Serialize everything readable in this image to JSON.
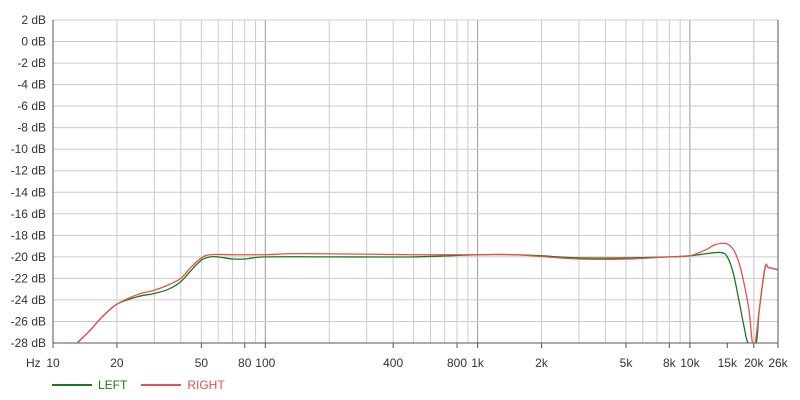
{
  "chart_data": {
    "type": "line",
    "title": "",
    "xlabel": "Hz",
    "ylabel": "",
    "x_scale": "log",
    "xlim": [
      10,
      26000
    ],
    "ylim": [
      -28,
      2
    ],
    "grid": true,
    "legend_position": "bottom-left",
    "y_ticks": [
      "2 dB",
      "0 dB",
      "-2 dB",
      "-4 dB",
      "-6 dB",
      "-8 dB",
      "-10 dB",
      "-12 dB",
      "-14 dB",
      "-16 dB",
      "-18 dB",
      "-20 dB",
      "-22 dB",
      "-24 dB",
      "-26 dB",
      "-28 dB"
    ],
    "x_ticks": [
      {
        "value": 10,
        "label": "10"
      },
      {
        "value": 20,
        "label": "20"
      },
      {
        "value": 50,
        "label": "50"
      },
      {
        "value": 80,
        "label": "80"
      },
      {
        "value": 100,
        "label": "100"
      },
      {
        "value": 400,
        "label": "400"
      },
      {
        "value": 800,
        "label": "800"
      },
      {
        "value": 1000,
        "label": "1k"
      },
      {
        "value": 2000,
        "label": "2k"
      },
      {
        "value": 5000,
        "label": "5k"
      },
      {
        "value": 8000,
        "label": "8k"
      },
      {
        "value": 10000,
        "label": "10k"
      },
      {
        "value": 15000,
        "label": "15k"
      },
      {
        "value": 20000,
        "label": "20k"
      },
      {
        "value": 26000,
        "label": "26k"
      }
    ],
    "series": [
      {
        "name": "LEFT",
        "color": "#1a7a1a",
        "x": [
          13,
          15,
          17,
          20,
          25,
          30,
          35,
          40,
          45,
          50,
          55,
          60,
          70,
          80,
          100,
          200,
          500,
          1000,
          1500,
          2000,
          3000,
          5000,
          8000,
          10000,
          12000,
          14000,
          15000,
          16000,
          17000,
          18000,
          18800,
          20500,
          21200,
          22600,
          23500,
          26000
        ],
        "y": [
          -28,
          -26.8,
          -25.6,
          -24.4,
          -23.7,
          -23.4,
          -23.0,
          -22.3,
          -21.2,
          -20.3,
          -20.0,
          -20.0,
          -20.2,
          -20.2,
          -20.0,
          -20.0,
          -20.0,
          -19.8,
          -19.8,
          -19.9,
          -20.1,
          -20.1,
          -20.0,
          -19.9,
          -19.7,
          -19.6,
          -20.0,
          -21.5,
          -24.0,
          -26.5,
          -28,
          -28,
          -25,
          -21.0,
          -21.0,
          -21.2
        ]
      },
      {
        "name": "RIGHT",
        "color": "#e85050",
        "x": [
          13,
          15,
          17,
          20,
          25,
          30,
          35,
          40,
          45,
          50,
          55,
          70,
          100,
          150,
          500,
          1000,
          1500,
          3000,
          5000,
          8000,
          10000,
          12000,
          13000,
          14000,
          15000,
          16000,
          17000,
          18000,
          19000,
          19700,
          20300,
          21200,
          22600,
          23500,
          26000
        ],
        "y": [
          -28,
          -26.8,
          -25.6,
          -24.4,
          -23.5,
          -23.1,
          -22.6,
          -22.0,
          -20.9,
          -20.1,
          -19.8,
          -19.8,
          -19.8,
          -19.7,
          -19.8,
          -19.8,
          -19.8,
          -20.2,
          -20.2,
          -20.0,
          -19.9,
          -19.3,
          -18.9,
          -18.75,
          -18.8,
          -19.3,
          -20.5,
          -22.5,
          -25.0,
          -28,
          -28,
          -25,
          -21.0,
          -21.0,
          -21.2
        ]
      }
    ]
  }
}
